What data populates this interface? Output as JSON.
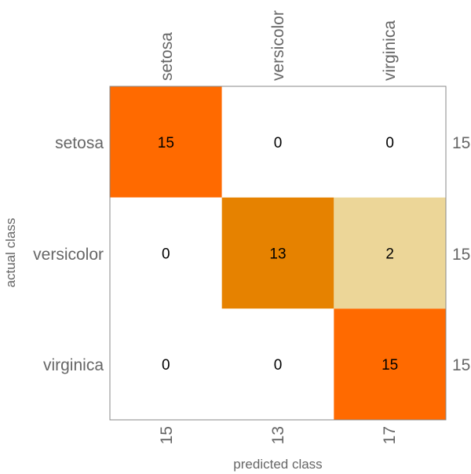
{
  "chart_data": {
    "type": "heatmap",
    "title": "",
    "xlabel": "predicted class",
    "ylabel": "actual class",
    "classes": [
      "setosa",
      "versicolor",
      "virginica"
    ],
    "matrix": [
      [
        15,
        0,
        0
      ],
      [
        0,
        13,
        2
      ],
      [
        0,
        0,
        15
      ]
    ],
    "row_totals": [
      "15",
      "15",
      "15"
    ],
    "column_totals": [
      "15",
      "13",
      "17"
    ],
    "colors": {
      "high": "#ff6a00",
      "medium_high": "#e68200",
      "low": "#ecd698",
      "zero": "#ffffff",
      "frame": "#888888",
      "text": "#000000",
      "labels": "#666666"
    }
  }
}
